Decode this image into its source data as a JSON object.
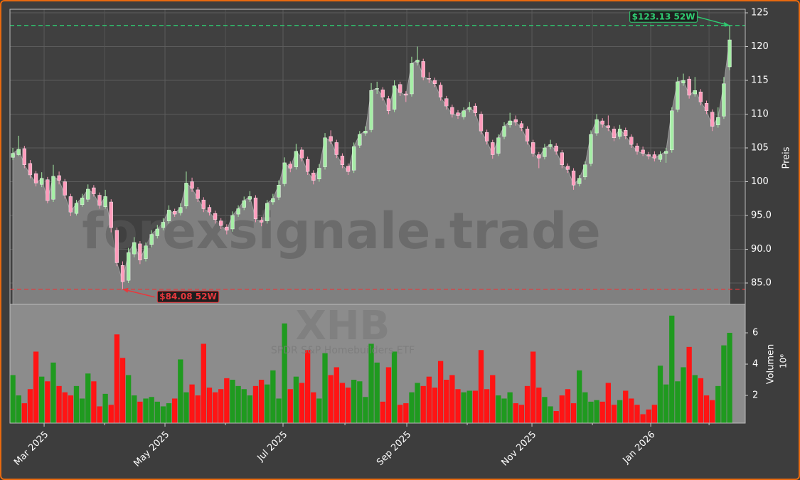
{
  "chart_data": {
    "type": "candlestick",
    "watermark": "forexsignale.trade",
    "symbol": "XHB",
    "subtitle": "SPDR S&P Homebuilders ETF",
    "ylabel": "Preis",
    "y2label": "Volumen",
    "y2_offset_label": "10⁶",
    "grid": true,
    "up_color": "#a6eea6",
    "down_color": "#ff9cbc",
    "volume_up_color": "#1f9a1f",
    "volume_down_color": "#ff1414",
    "area_color": "#808080",
    "xlim": [
      -0.5,
      126.7
    ],
    "xticks": [
      {
        "value": 5.41,
        "label": "Mar 2025"
      },
      {
        "value": 26.32,
        "label": "May 2025"
      },
      {
        "value": 46.74,
        "label": "Jul 2025"
      },
      {
        "value": 68.15,
        "label": "Sep 2025"
      },
      {
        "value": 89.8,
        "label": "Nov 2025"
      },
      {
        "value": 110.35,
        "label": "Jan 2026"
      }
    ],
    "xminorticks": [
      15.86,
      36.78,
      57.45,
      78.6,
      100.26,
      120.44
    ],
    "ylim": [
      81.84,
      125.53
    ],
    "yticks": [
      {
        "value": 85,
        "label": "85.0"
      },
      {
        "value": 90,
        "label": "90.0"
      },
      {
        "value": 95,
        "label": "95.0"
      },
      100,
      105,
      110,
      115,
      120,
      125
    ],
    "y2lim": [
      0.23,
      7.82
    ],
    "y2ticks": [
      2,
      4,
      6
    ],
    "annotations": [
      {
        "label": "$123.13 52W",
        "value": 123.13,
        "color": "#2ecc71"
      },
      {
        "label": "$84.08 52W",
        "value": 84.08,
        "color": "#e8383d"
      }
    ],
    "candles": [
      [
        103.6,
        105.0,
        103.2,
        104.2
      ],
      [
        104.0,
        106.8,
        103.8,
        104.8
      ],
      [
        104.9,
        105.3,
        102.0,
        102.5
      ],
      [
        102.7,
        103.2,
        100.5,
        101.0
      ],
      [
        101.2,
        101.6,
        99.3,
        99.8
      ],
      [
        99.6,
        101.4,
        99.2,
        100.5
      ],
      [
        100.3,
        100.7,
        96.8,
        97.2
      ],
      [
        97.4,
        102.5,
        97.0,
        100.8
      ],
      [
        100.9,
        101.5,
        99.6,
        100.2
      ],
      [
        100.0,
        100.4,
        97.5,
        98.0
      ],
      [
        97.8,
        98.2,
        94.9,
        95.5
      ],
      [
        95.3,
        97.3,
        95.0,
        96.8
      ],
      [
        96.6,
        98.2,
        96.3,
        97.6
      ],
      [
        97.4,
        99.6,
        97.0,
        98.9
      ],
      [
        99.1,
        99.5,
        97.8,
        98.2
      ],
      [
        98.0,
        98.4,
        96.0,
        96.5
      ],
      [
        96.3,
        98.8,
        96.0,
        97.8
      ],
      [
        97.0,
        97.4,
        92.5,
        93.2
      ],
      [
        92.8,
        93.2,
        87.5,
        88.0
      ],
      [
        87.6,
        88.2,
        84.08,
        85.2
      ],
      [
        85.4,
        90.2,
        85.0,
        89.5
      ],
      [
        89.3,
        91.8,
        88.8,
        91.0
      ],
      [
        90.8,
        91.2,
        87.8,
        88.4
      ],
      [
        88.6,
        91.0,
        88.2,
        90.5
      ],
      [
        90.7,
        92.8,
        90.3,
        92.2
      ],
      [
        92.0,
        93.6,
        91.6,
        93.0
      ],
      [
        93.2,
        94.6,
        92.8,
        94.0
      ],
      [
        94.2,
        96.5,
        93.8,
        95.8
      ],
      [
        95.6,
        96.0,
        94.8,
        95.2
      ],
      [
        95.4,
        96.8,
        95.0,
        96.2
      ],
      [
        96.4,
        101.5,
        96.0,
        99.8
      ],
      [
        100.0,
        100.6,
        98.5,
        99.0
      ],
      [
        98.8,
        99.2,
        97.0,
        97.5
      ],
      [
        97.3,
        97.7,
        95.5,
        96.0
      ],
      [
        96.2,
        96.6,
        95.0,
        95.5
      ],
      [
        95.3,
        95.7,
        93.8,
        94.4
      ],
      [
        94.2,
        94.6,
        93.0,
        93.5
      ],
      [
        93.3,
        93.7,
        92.2,
        92.8
      ],
      [
        93.0,
        95.6,
        92.6,
        95.0
      ],
      [
        95.2,
        96.5,
        94.8,
        96.0
      ],
      [
        96.2,
        97.8,
        95.8,
        97.2
      ],
      [
        97.4,
        98.6,
        97.0,
        97.8
      ],
      [
        97.6,
        98.0,
        94.0,
        94.5
      ],
      [
        94.3,
        94.8,
        93.4,
        94.0
      ],
      [
        94.2,
        97.3,
        93.8,
        96.8
      ],
      [
        97.0,
        98.2,
        96.6,
        97.5
      ],
      [
        97.7,
        100.2,
        97.3,
        99.5
      ],
      [
        99.7,
        103.6,
        99.3,
        102.8
      ],
      [
        102.6,
        103.0,
        101.4,
        102.0
      ],
      [
        102.2,
        105.6,
        101.8,
        104.5
      ],
      [
        104.7,
        105.1,
        103.0,
        103.5
      ],
      [
        103.3,
        103.7,
        101.0,
        101.5
      ],
      [
        101.3,
        101.7,
        99.6,
        100.2
      ],
      [
        100.4,
        102.6,
        100.0,
        102.0
      ],
      [
        102.2,
        107.2,
        101.8,
        106.5
      ],
      [
        106.7,
        107.6,
        105.6,
        106.0
      ],
      [
        105.8,
        106.2,
        103.5,
        104.0
      ],
      [
        103.8,
        104.2,
        102.0,
        102.5
      ],
      [
        102.3,
        102.7,
        101.0,
        101.5
      ],
      [
        101.7,
        105.8,
        101.3,
        105.2
      ],
      [
        105.4,
        107.5,
        105.0,
        107.0
      ],
      [
        107.2,
        108.2,
        106.8,
        107.5
      ],
      [
        107.7,
        114.6,
        107.3,
        113.5
      ],
      [
        113.7,
        114.8,
        113.0,
        113.8
      ],
      [
        113.6,
        114.0,
        112.0,
        112.5
      ],
      [
        112.3,
        112.7,
        110.0,
        110.5
      ],
      [
        110.7,
        115.0,
        110.3,
        114.2
      ],
      [
        114.4,
        114.8,
        112.7,
        113.2
      ],
      [
        113.0,
        113.4,
        111.8,
        112.8
      ],
      [
        113.0,
        118.5,
        112.6,
        117.5
      ],
      [
        117.7,
        120.0,
        117.2,
        118.0
      ],
      [
        117.8,
        118.2,
        115.0,
        115.5
      ],
      [
        115.3,
        116.2,
        114.6,
        115.2
      ],
      [
        115.0,
        115.4,
        114.0,
        114.5
      ],
      [
        114.3,
        114.7,
        112.0,
        112.5
      ],
      [
        112.3,
        112.7,
        110.7,
        111.2
      ],
      [
        111.0,
        111.4,
        109.5,
        110.0
      ],
      [
        110.2,
        110.6,
        109.3,
        109.8
      ],
      [
        109.6,
        111.0,
        109.2,
        110.5
      ],
      [
        110.7,
        111.8,
        110.3,
        111.0
      ],
      [
        111.2,
        111.6,
        109.7,
        110.2
      ],
      [
        110.0,
        110.4,
        107.0,
        107.5
      ],
      [
        107.3,
        107.7,
        105.5,
        106.0
      ],
      [
        105.8,
        106.2,
        103.4,
        104.0
      ],
      [
        104.2,
        107.0,
        103.8,
        106.5
      ],
      [
        106.7,
        108.8,
        106.3,
        108.2
      ],
      [
        108.4,
        110.2,
        108.0,
        109.0
      ],
      [
        109.2,
        109.8,
        108.3,
        108.8
      ],
      [
        108.6,
        109.0,
        107.5,
        108.0
      ],
      [
        107.8,
        108.2,
        105.5,
        106.0
      ],
      [
        105.8,
        106.2,
        103.7,
        104.2
      ],
      [
        104.0,
        104.4,
        102.0,
        103.5
      ],
      [
        103.7,
        105.6,
        103.3,
        105.0
      ],
      [
        105.2,
        106.2,
        104.8,
        105.5
      ],
      [
        105.3,
        105.7,
        104.0,
        104.5
      ],
      [
        104.3,
        104.7,
        102.0,
        102.5
      ],
      [
        102.3,
        102.7,
        101.3,
        101.8
      ],
      [
        101.6,
        102.0,
        98.8,
        99.5
      ],
      [
        99.7,
        101.0,
        99.3,
        100.5
      ],
      [
        100.7,
        103.0,
        100.3,
        102.5
      ],
      [
        102.7,
        107.6,
        102.3,
        107.0
      ],
      [
        107.2,
        110.0,
        106.8,
        109.2
      ],
      [
        109.0,
        109.4,
        108.0,
        108.5
      ],
      [
        108.3,
        109.8,
        107.5,
        108.0
      ],
      [
        107.8,
        108.2,
        106.0,
        106.5
      ],
      [
        106.7,
        108.4,
        106.3,
        107.8
      ],
      [
        107.6,
        108.0,
        106.3,
        106.8
      ],
      [
        106.6,
        107.0,
        105.0,
        105.5
      ],
      [
        105.3,
        105.7,
        104.0,
        104.5
      ],
      [
        104.7,
        105.2,
        103.8,
        104.2
      ],
      [
        104.0,
        104.4,
        103.3,
        103.8
      ],
      [
        104.0,
        104.5,
        103.0,
        103.5
      ],
      [
        103.3,
        104.5,
        102.9,
        104.0
      ],
      [
        104.2,
        105.0,
        102.8,
        104.5
      ],
      [
        104.7,
        111.0,
        104.3,
        110.5
      ],
      [
        110.7,
        115.5,
        110.3,
        114.8
      ],
      [
        114.6,
        116.0,
        114.2,
        115.0
      ],
      [
        115.2,
        115.6,
        112.3,
        112.8
      ],
      [
        113.0,
        115.5,
        112.6,
        113.5
      ],
      [
        113.3,
        113.7,
        111.3,
        111.8
      ],
      [
        111.6,
        112.0,
        110.0,
        110.5
      ],
      [
        110.3,
        110.7,
        107.5,
        108.2
      ],
      [
        108.4,
        111.0,
        108.0,
        109.5
      ],
      [
        109.7,
        115.5,
        109.3,
        114.5
      ],
      [
        117.0,
        123.13,
        116.5,
        121.0
      ]
    ],
    "volume": [
      3.3,
      2.0,
      1.5,
      2.4,
      4.8,
      3.2,
      2.9,
      4.1,
      2.6,
      2.2,
      2.0,
      2.6,
      1.8,
      3.4,
      2.9,
      1.3,
      2.1,
      1.4,
      5.9,
      4.4,
      3.3,
      2.0,
      1.6,
      1.8,
      1.9,
      1.6,
      1.3,
      1.5,
      1.8,
      4.3,
      2.2,
      2.7,
      2.0,
      5.3,
      2.5,
      2.2,
      2.4,
      3.1,
      3.0,
      2.6,
      2.4,
      2.0,
      2.6,
      3.0,
      2.7,
      3.6,
      1.8,
      6.6,
      2.4,
      3.2,
      2.8,
      4.9,
      2.2,
      1.8,
      4.7,
      3.3,
      3.8,
      2.8,
      2.5,
      3.0,
      2.9,
      1.9,
      5.3,
      4.1,
      1.6,
      3.8,
      4.8,
      1.4,
      1.5,
      2.2,
      2.8,
      2.6,
      3.2,
      2.5,
      4.2,
      3.0,
      3.3,
      2.4,
      2.2,
      2.3,
      2.3,
      4.9,
      2.4,
      3.3,
      2.0,
      1.8,
      2.2,
      1.5,
      1.4,
      2.6,
      4.8,
      2.5,
      1.9,
      1.3,
      1.0,
      2.0,
      2.4,
      1.5,
      3.6,
      2.2,
      1.6,
      1.7,
      1.6,
      2.8,
      1.4,
      1.7,
      2.3,
      1.8,
      1.4,
      0.8,
      1.1,
      1.4,
      3.9,
      2.7,
      7.1,
      2.9,
      3.8,
      5.1,
      3.3,
      3.1,
      2.0,
      1.7,
      2.6,
      5.2,
      6.0
    ]
  }
}
